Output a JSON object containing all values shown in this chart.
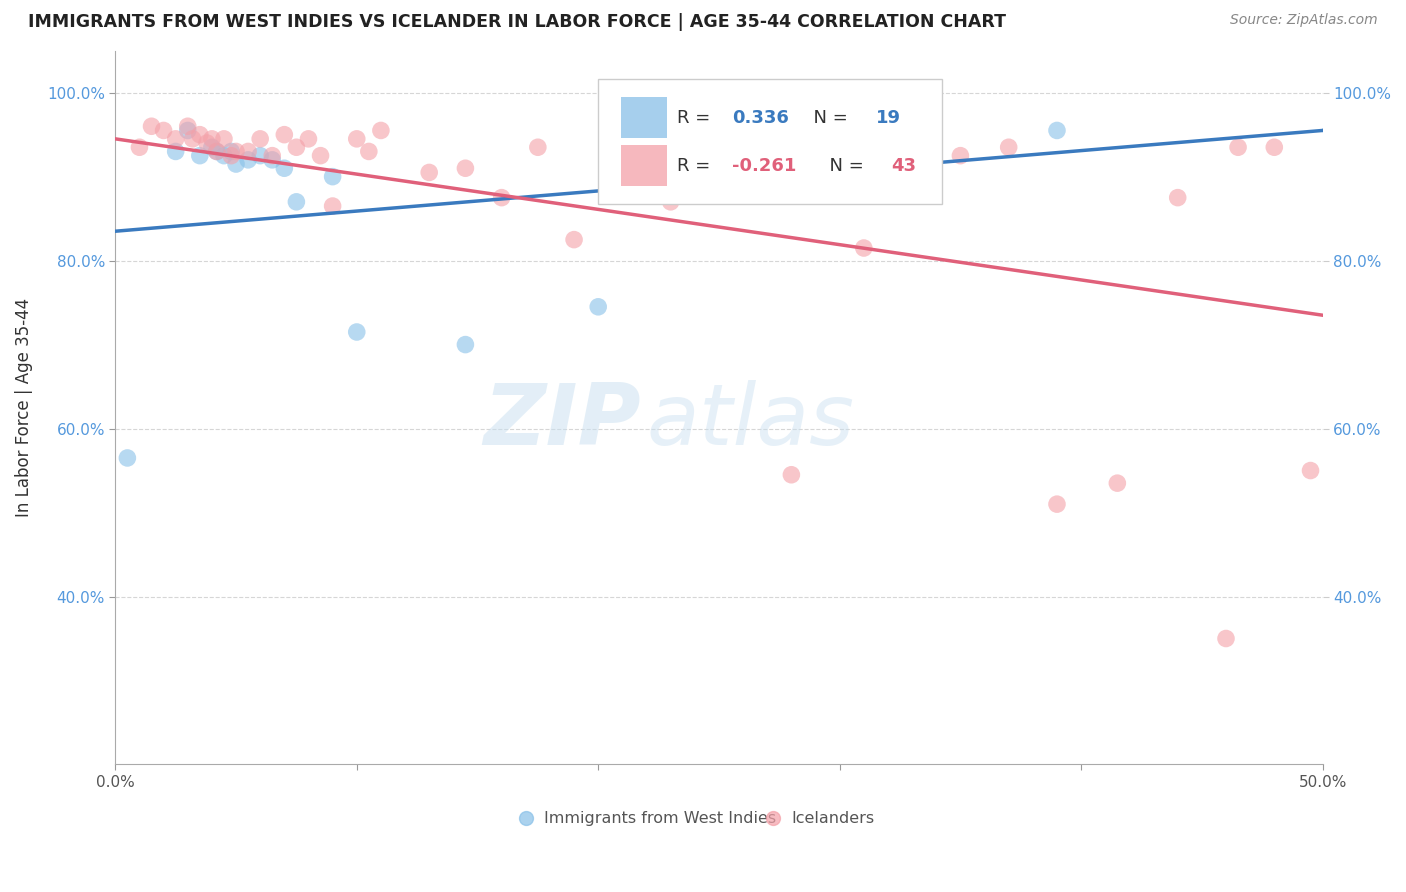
{
  "title": "IMMIGRANTS FROM WEST INDIES VS ICELANDER IN LABOR FORCE | AGE 35-44 CORRELATION CHART",
  "source": "Source: ZipAtlas.com",
  "ylabel": "In Labor Force | Age 35-44",
  "xlim": [
    0.0,
    0.5
  ],
  "ylim": [
    0.2,
    1.05
  ],
  "xticks": [
    0.0,
    0.1,
    0.2,
    0.3,
    0.4,
    0.5
  ],
  "xticklabels": [
    "0.0%",
    "",
    "",
    "",
    "",
    "50.0%"
  ],
  "yticks": [
    0.4,
    0.6,
    0.8,
    1.0
  ],
  "yticklabels": [
    "40.0%",
    "60.0%",
    "80.0%",
    "100.0%"
  ],
  "legend_label1": "Immigrants from West Indies",
  "legend_label2": "Icelanders",
  "R1": 0.336,
  "N1": 19,
  "R2": -0.261,
  "N2": 43,
  "blue_color": "#88c0e8",
  "pink_color": "#f4a0a8",
  "line_blue": "#3a7abf",
  "line_pink": "#e0607a",
  "watermark_zip": "ZIP",
  "watermark_atlas": "atlas",
  "blue_x": [
    0.005,
    0.025,
    0.03,
    0.035,
    0.04,
    0.042,
    0.045,
    0.048,
    0.05,
    0.055,
    0.06,
    0.065,
    0.07,
    0.075,
    0.09,
    0.1,
    0.145,
    0.2,
    0.39
  ],
  "blue_y": [
    0.565,
    0.93,
    0.955,
    0.925,
    0.935,
    0.93,
    0.925,
    0.93,
    0.915,
    0.92,
    0.925,
    0.92,
    0.91,
    0.87,
    0.9,
    0.715,
    0.7,
    0.745,
    0.955
  ],
  "pink_x": [
    0.01,
    0.015,
    0.02,
    0.025,
    0.03,
    0.032,
    0.035,
    0.038,
    0.04,
    0.042,
    0.045,
    0.048,
    0.05,
    0.055,
    0.06,
    0.065,
    0.07,
    0.075,
    0.08,
    0.085,
    0.09,
    0.1,
    0.105,
    0.11,
    0.13,
    0.145,
    0.16,
    0.175,
    0.19,
    0.21,
    0.23,
    0.245,
    0.28,
    0.31,
    0.35,
    0.37,
    0.39,
    0.415,
    0.44,
    0.46,
    0.465,
    0.48,
    0.495
  ],
  "pink_y": [
    0.935,
    0.96,
    0.955,
    0.945,
    0.96,
    0.945,
    0.95,
    0.94,
    0.945,
    0.93,
    0.945,
    0.925,
    0.93,
    0.93,
    0.945,
    0.925,
    0.95,
    0.935,
    0.945,
    0.925,
    0.865,
    0.945,
    0.93,
    0.955,
    0.905,
    0.91,
    0.875,
    0.935,
    0.825,
    0.935,
    0.87,
    0.935,
    0.545,
    0.815,
    0.925,
    0.935,
    0.51,
    0.535,
    0.875,
    0.35,
    0.935,
    0.935,
    0.55
  ],
  "blue_line_x0": 0.0,
  "blue_line_y0": 0.835,
  "blue_line_x1": 0.5,
  "blue_line_y1": 0.955,
  "blue_line_xext": 0.62,
  "blue_line_yext": 0.985,
  "pink_line_x0": 0.0,
  "pink_line_y0": 0.945,
  "pink_line_x1": 0.5,
  "pink_line_y1": 0.735
}
